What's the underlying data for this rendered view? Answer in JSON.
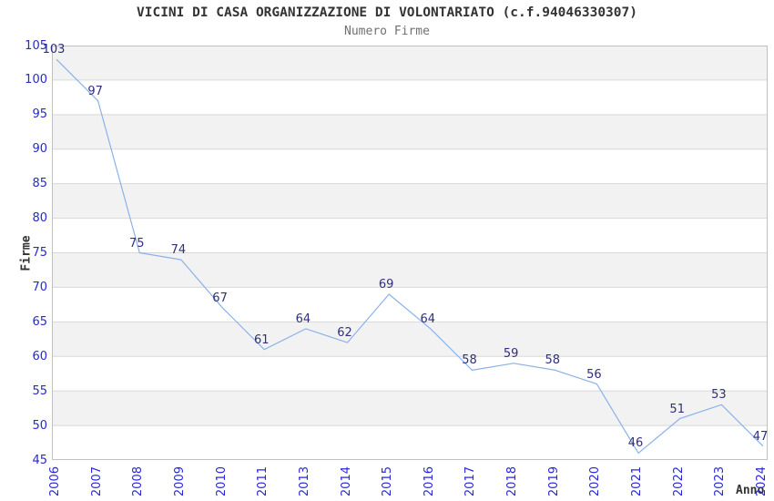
{
  "chart_data": {
    "type": "line",
    "title": "VICINI DI CASA ORGANIZZAZIONE DI VOLONTARIATO (c.f.94046330307)",
    "subtitle": "Numero Firme",
    "xlabel": "Anno",
    "ylabel": "Firme",
    "categories": [
      "2006",
      "2007",
      "2008",
      "2009",
      "2010",
      "2011",
      "2013",
      "2014",
      "2015",
      "2016",
      "2017",
      "2018",
      "2019",
      "2020",
      "2021",
      "2022",
      "2023",
      "2024"
    ],
    "values": [
      103,
      97,
      75,
      74,
      67,
      61,
      64,
      62,
      69,
      64,
      58,
      59,
      58,
      56,
      46,
      51,
      53,
      47
    ],
    "ylim": [
      45,
      105
    ],
    "ytick_step": 5,
    "grid": "horizontal",
    "legend": "none",
    "point_labels_visible": true,
    "colors": {
      "line": "#8ab2e8",
      "tick_label": "#2828d7",
      "point_label": "#30307c",
      "band_fill": "#f2f2f2",
      "gridline": "#d8d8d8",
      "plot_border": "#c0c0c0",
      "title": "#333333",
      "subtitle": "#707070",
      "background": "#ffffff"
    }
  }
}
